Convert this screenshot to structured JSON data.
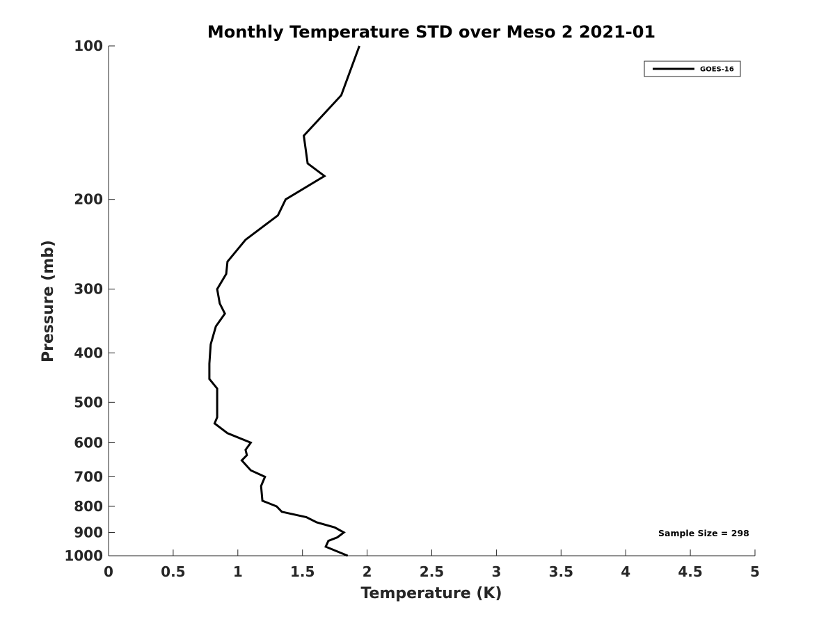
{
  "chart_data": {
    "type": "line",
    "title": "Monthly Temperature STD over Meso 2  2021-01",
    "xlabel": "Temperature (K)",
    "ylabel": "Pressure (mb)",
    "xlim": [
      0,
      5
    ],
    "ylim": [
      100,
      1000
    ],
    "yscale": "log",
    "y_reversed": true,
    "grid": false,
    "xticks": [
      0,
      0.5,
      1,
      1.5,
      2,
      2.5,
      3,
      3.5,
      4,
      4.5,
      5
    ],
    "xtick_labels": [
      "0",
      "0.5",
      "1",
      "1.5",
      "2",
      "2.5",
      "3",
      "3.5",
      "4",
      "4.5",
      "5"
    ],
    "yticks": [
      100,
      200,
      300,
      400,
      500,
      600,
      700,
      800,
      900,
      1000
    ],
    "ytick_labels": [
      "100",
      "200",
      "300",
      "400",
      "500",
      "600",
      "700",
      "800",
      "900",
      "1000"
    ],
    "legend_position": "top-right",
    "annotation": "Sample Size = 298",
    "series": [
      {
        "name": "GOES-16",
        "color": "#000000",
        "points": [
          {
            "x": 1.94,
            "p": 100
          },
          {
            "x": 1.8,
            "p": 125
          },
          {
            "x": 1.51,
            "p": 150
          },
          {
            "x": 1.54,
            "p": 170
          },
          {
            "x": 1.67,
            "p": 180
          },
          {
            "x": 1.37,
            "p": 200
          },
          {
            "x": 1.31,
            "p": 215
          },
          {
            "x": 1.06,
            "p": 240
          },
          {
            "x": 0.92,
            "p": 265
          },
          {
            "x": 0.91,
            "p": 280
          },
          {
            "x": 0.84,
            "p": 300
          },
          {
            "x": 0.86,
            "p": 320
          },
          {
            "x": 0.9,
            "p": 335
          },
          {
            "x": 0.83,
            "p": 355
          },
          {
            "x": 0.79,
            "p": 385
          },
          {
            "x": 0.78,
            "p": 420
          },
          {
            "x": 0.78,
            "p": 450
          },
          {
            "x": 0.84,
            "p": 470
          },
          {
            "x": 0.84,
            "p": 500
          },
          {
            "x": 0.84,
            "p": 535
          },
          {
            "x": 0.82,
            "p": 550
          },
          {
            "x": 0.92,
            "p": 575
          },
          {
            "x": 1.1,
            "p": 600
          },
          {
            "x": 1.06,
            "p": 620
          },
          {
            "x": 1.07,
            "p": 635
          },
          {
            "x": 1.03,
            "p": 650
          },
          {
            "x": 1.1,
            "p": 680
          },
          {
            "x": 1.21,
            "p": 700
          },
          {
            "x": 1.18,
            "p": 730
          },
          {
            "x": 1.19,
            "p": 780
          },
          {
            "x": 1.3,
            "p": 800
          },
          {
            "x": 1.34,
            "p": 820
          },
          {
            "x": 1.53,
            "p": 840
          },
          {
            "x": 1.61,
            "p": 860
          },
          {
            "x": 1.75,
            "p": 880
          },
          {
            "x": 1.82,
            "p": 900
          },
          {
            "x": 1.77,
            "p": 920
          },
          {
            "x": 1.7,
            "p": 935
          },
          {
            "x": 1.68,
            "p": 960
          },
          {
            "x": 1.85,
            "p": 1000
          }
        ]
      }
    ]
  }
}
